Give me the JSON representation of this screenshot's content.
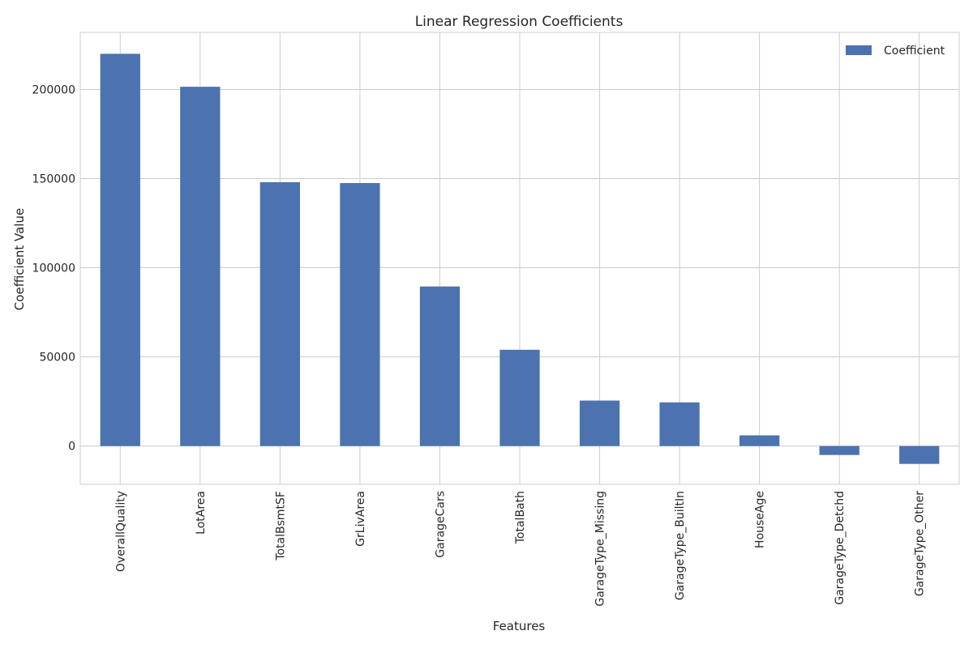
{
  "chart_data": {
    "type": "bar",
    "title": "Linear Regression Coefficients",
    "xlabel": "Features",
    "ylabel": "Coefficient Value",
    "categories": [
      "OverallQuality",
      "LotArea",
      "TotalBsmtSF",
      "GrLivArea",
      "GarageCars",
      "TotalBath",
      "GarageType_Missing",
      "GarageType_BuiltIn",
      "HouseAge",
      "GarageType_Detchd",
      "GarageType_Other"
    ],
    "series": [
      {
        "name": "Coefficient",
        "values": [
          220000,
          201500,
          148000,
          147500,
          89500,
          54000,
          25500,
          24500,
          6000,
          -5000,
          -10000
        ],
        "color": "#4c72b0"
      }
    ],
    "ylim": [
      -21500,
      232000
    ],
    "yticks": [
      0,
      50000,
      100000,
      150000,
      200000
    ],
    "ytick_labels": [
      "0",
      "50000",
      "100000",
      "150000",
      "200000"
    ],
    "grid": true,
    "legend_position": "top-right"
  }
}
